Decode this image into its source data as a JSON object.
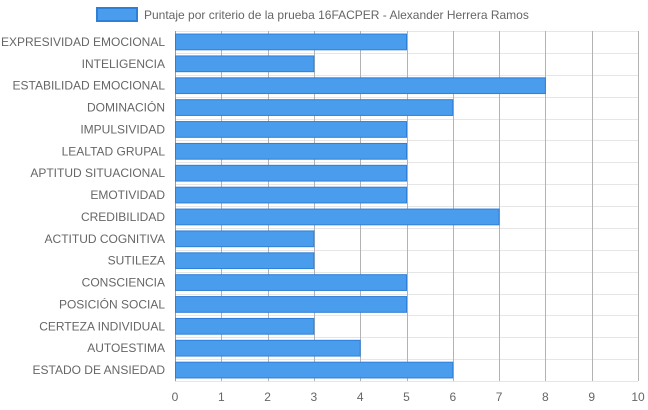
{
  "chart_data": {
    "type": "bar",
    "orientation": "horizontal",
    "legend": "top",
    "grid": true,
    "categories": [
      "EXPRESIVIDAD EMOCIONAL",
      "INTELIGENCIA",
      "ESTABILIDAD EMOCIONAL",
      "DOMINACIÓN",
      "IMPULSIVIDAD",
      "LEALTAD GRUPAL",
      "APTITUD SITUACIONAL",
      "EMOTIVIDAD",
      "CREDIBILIDAD",
      "ACTITUD COGNITIVA",
      "SUTILEZA",
      "CONSCIENCIA",
      "POSICIÓN SOCIAL",
      "CERTEZA INDIVIDUAL",
      "AUTOESTIMA",
      "ESTADO DE ANSIEDAD"
    ],
    "series": [
      {
        "name": "Puntaje por criterio de la prueba 16FACPER - Alexander Herrera Ramos",
        "values": [
          5,
          3,
          8,
          6,
          5,
          5,
          5,
          5,
          7,
          3,
          3,
          5,
          5,
          3,
          4,
          6
        ],
        "color": "#4a9cec",
        "border_color": "#2f7fd8"
      }
    ],
    "xlim": [
      0,
      10
    ],
    "xticks": [
      "0",
      "1",
      "2",
      "3",
      "4",
      "5",
      "6",
      "7",
      "8",
      "9",
      "10"
    ]
  }
}
